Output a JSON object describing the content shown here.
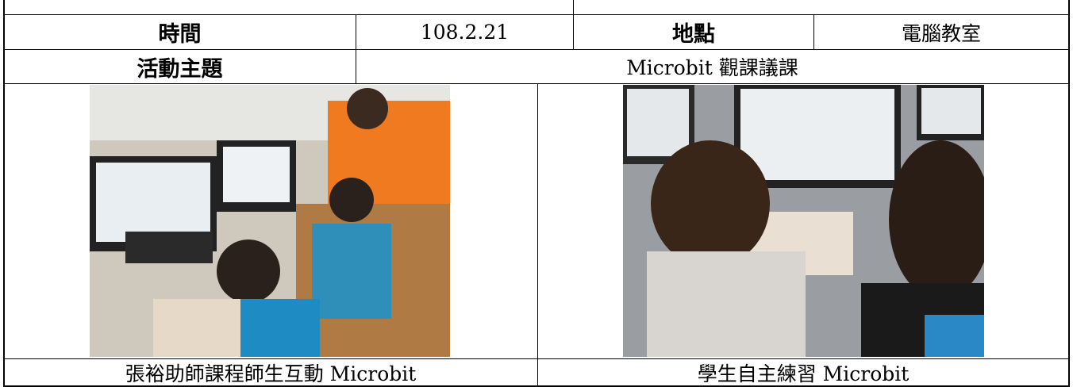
{
  "table": {
    "rows": [
      [
        "時間",
        "108.2.21",
        "地點",
        "電腦教室"
      ],
      [
        "活動主題",
        "Microbit 觀課議課"
      ],
      [
        "張裕助師課程師生互動 Microbit",
        "學生自主練習 Microbit"
      ]
    ]
  }
}
